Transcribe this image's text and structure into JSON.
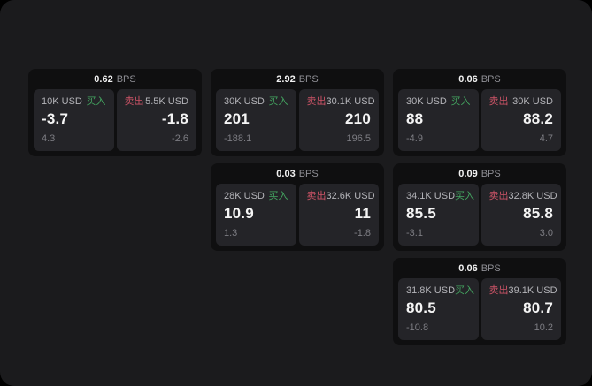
{
  "labels": {
    "bps_unit": "BPS",
    "buy": "买入",
    "sell": "卖出"
  },
  "colors": {
    "surface_bg": "#1b1b1d",
    "card_bg": "#0f0f10",
    "panel_bg": "#242428",
    "buy_green": "#44a761",
    "sell_red": "#ce5467",
    "value_white": "#f5f5f5",
    "label_gray": "#b4b4b9",
    "delta_gray": "#7d7d83"
  },
  "cards": [
    {
      "bps": "0.62",
      "buy": {
        "amount": "10K USD",
        "value": "-3.7",
        "delta": "4.3"
      },
      "sell": {
        "amount": "5.5K USD",
        "value": "-1.8",
        "delta": "-2.6"
      }
    },
    {
      "bps": "2.92",
      "buy": {
        "amount": "30K USD",
        "value": "201",
        "delta": "-188.1"
      },
      "sell": {
        "amount": "30.1K USD",
        "value": "210",
        "delta": "196.5"
      }
    },
    {
      "bps": "0.06",
      "buy": {
        "amount": "30K USD",
        "value": "88",
        "delta": "-4.9"
      },
      "sell": {
        "amount": "30K USD",
        "value": "88.2",
        "delta": "4.7"
      }
    },
    {
      "bps": "0.03",
      "buy": {
        "amount": "28K USD",
        "value": "10.9",
        "delta": "1.3"
      },
      "sell": {
        "amount": "32.6K USD",
        "value": "11",
        "delta": "-1.8"
      }
    },
    {
      "bps": "0.09",
      "buy": {
        "amount": "34.1K USD",
        "value": "85.5",
        "delta": "-3.1"
      },
      "sell": {
        "amount": "32.8K USD",
        "value": "85.8",
        "delta": "3.0"
      }
    },
    {
      "bps": "0.06",
      "buy": {
        "amount": "31.8K USD",
        "value": "80.5",
        "delta": "-10.8"
      },
      "sell": {
        "amount": "39.1K USD",
        "value": "80.7",
        "delta": "10.2"
      }
    }
  ]
}
